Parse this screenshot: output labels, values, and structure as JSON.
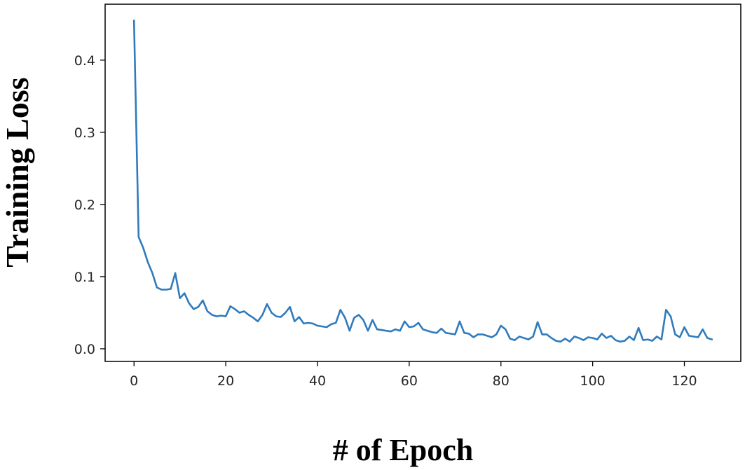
{
  "chart_data": {
    "type": "line",
    "xlabel": "# of Epoch",
    "ylabel": "Training Loss",
    "xlim": [
      -6.3,
      132.3
    ],
    "ylim": [
      -0.0175,
      0.4775
    ],
    "xticks": [
      0,
      20,
      40,
      60,
      80,
      100,
      120
    ],
    "xtick_labels": [
      "0",
      "20",
      "40",
      "60",
      "80",
      "100",
      "120"
    ],
    "yticks": [
      0.0,
      0.1,
      0.2,
      0.3,
      0.4
    ],
    "ytick_labels": [
      "0.0",
      "0.1",
      "0.2",
      "0.3",
      "0.4"
    ],
    "grid": false,
    "series": [
      {
        "color": "#2f7bbd",
        "x": [
          0,
          1,
          2,
          3,
          4,
          5,
          6,
          7,
          8,
          9,
          10,
          11,
          12,
          13,
          14,
          15,
          16,
          17,
          18,
          19,
          20,
          21,
          22,
          23,
          24,
          25,
          26,
          27,
          28,
          29,
          30,
          31,
          32,
          33,
          34,
          35,
          36,
          37,
          38,
          39,
          40,
          41,
          42,
          43,
          44,
          45,
          46,
          47,
          48,
          49,
          50,
          51,
          52,
          53,
          54,
          55,
          56,
          57,
          58,
          59,
          60,
          61,
          62,
          63,
          64,
          65,
          66,
          67,
          68,
          69,
          70,
          71,
          72,
          73,
          74,
          75,
          76,
          77,
          78,
          79,
          80,
          81,
          82,
          83,
          84,
          85,
          86,
          87,
          88,
          89,
          90,
          91,
          92,
          93,
          94,
          95,
          96,
          97,
          98,
          99,
          100,
          101,
          102,
          103,
          104,
          105,
          106,
          107,
          108,
          109,
          110,
          111,
          112,
          113,
          114,
          115,
          116,
          117,
          118,
          119,
          120,
          121,
          122,
          123,
          124,
          125,
          126
        ],
        "values": [
          0.455,
          0.155,
          0.14,
          0.12,
          0.105,
          0.085,
          0.082,
          0.082,
          0.083,
          0.105,
          0.07,
          0.077,
          0.063,
          0.055,
          0.058,
          0.067,
          0.052,
          0.047,
          0.045,
          0.046,
          0.045,
          0.059,
          0.055,
          0.05,
          0.052,
          0.047,
          0.043,
          0.038,
          0.047,
          0.062,
          0.05,
          0.045,
          0.044,
          0.05,
          0.058,
          0.038,
          0.044,
          0.035,
          0.036,
          0.035,
          0.032,
          0.031,
          0.03,
          0.034,
          0.036,
          0.054,
          0.043,
          0.025,
          0.043,
          0.047,
          0.04,
          0.025,
          0.04,
          0.027,
          0.026,
          0.025,
          0.024,
          0.027,
          0.025,
          0.038,
          0.03,
          0.031,
          0.036,
          0.027,
          0.025,
          0.023,
          0.022,
          0.028,
          0.022,
          0.021,
          0.02,
          0.038,
          0.022,
          0.021,
          0.016,
          0.02,
          0.02,
          0.018,
          0.016,
          0.02,
          0.032,
          0.027,
          0.014,
          0.012,
          0.017,
          0.015,
          0.013,
          0.017,
          0.037,
          0.02,
          0.02,
          0.015,
          0.011,
          0.01,
          0.014,
          0.01,
          0.017,
          0.015,
          0.012,
          0.016,
          0.015,
          0.013,
          0.021,
          0.015,
          0.018,
          0.012,
          0.01,
          0.011,
          0.017,
          0.012,
          0.029,
          0.012,
          0.013,
          0.011,
          0.017,
          0.013,
          0.054,
          0.045,
          0.02,
          0.016,
          0.03,
          0.018,
          0.017,
          0.016,
          0.027,
          0.015,
          0.013
        ]
      }
    ]
  }
}
